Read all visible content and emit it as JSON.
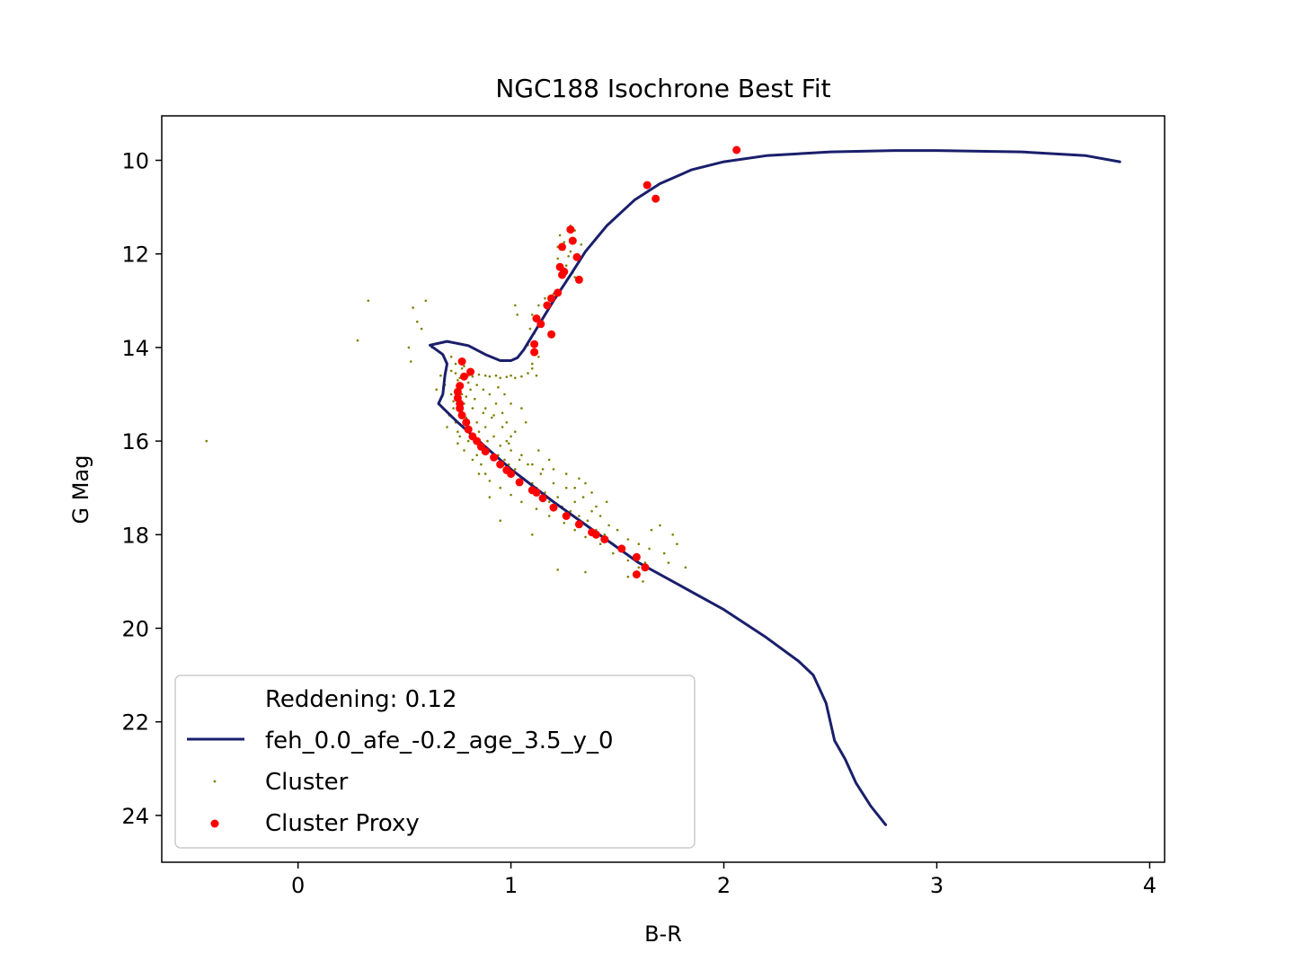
{
  "chart_data": {
    "type": "scatter",
    "title": "NGC188 Isochrone Best Fit",
    "xlabel": "B-R",
    "ylabel": "G Mag",
    "xlim": [
      -0.64,
      4.07
    ],
    "ylim": [
      25.0,
      9.05
    ],
    "y_inverted": true,
    "xticks": [
      0,
      1,
      2,
      3,
      4
    ],
    "xtick_labels": [
      "0",
      "1",
      "2",
      "3",
      "4"
    ],
    "yticks": [
      10,
      12,
      14,
      16,
      18,
      20,
      22,
      24
    ],
    "ytick_labels": [
      "10",
      "12",
      "14",
      "16",
      "18",
      "20",
      "22",
      "24"
    ],
    "grid": false,
    "legend_position": "lower-left",
    "legend": {
      "header": "Reddening: 0.12",
      "entries": [
        "feh_0.0_afe_-0.2_age_3.5_y_0",
        "Cluster",
        "Cluster Proxy"
      ]
    },
    "colors": {
      "isochrone": "#1a1f6b",
      "cluster": "#808000",
      "proxy": "#ff0000"
    },
    "series": [
      {
        "name": "feh_0.0_afe_-0.2_age_3.5_y_0",
        "kind": "line",
        "points": [
          [
            3.86,
            10.03
          ],
          [
            3.7,
            9.9
          ],
          [
            3.4,
            9.82
          ],
          [
            3.0,
            9.79
          ],
          [
            2.8,
            9.79
          ],
          [
            2.5,
            9.82
          ],
          [
            2.2,
            9.9
          ],
          [
            2.0,
            10.03
          ],
          [
            1.85,
            10.2
          ],
          [
            1.7,
            10.5
          ],
          [
            1.58,
            10.85
          ],
          [
            1.45,
            11.4
          ],
          [
            1.35,
            11.95
          ],
          [
            1.28,
            12.45
          ],
          [
            1.2,
            13.0
          ],
          [
            1.12,
            13.6
          ],
          [
            1.06,
            14.05
          ],
          [
            1.03,
            14.22
          ],
          [
            1.0,
            14.28
          ],
          [
            0.95,
            14.28
          ],
          [
            0.88,
            14.15
          ],
          [
            0.8,
            13.96
          ],
          [
            0.7,
            13.87
          ],
          [
            0.62,
            13.95
          ],
          [
            0.68,
            14.15
          ],
          [
            0.7,
            14.35
          ],
          [
            0.69,
            14.6
          ],
          [
            0.68,
            15.0
          ],
          [
            0.66,
            15.2
          ],
          [
            0.75,
            15.6
          ],
          [
            0.85,
            16.0
          ],
          [
            1.0,
            16.6
          ],
          [
            1.2,
            17.3
          ],
          [
            1.4,
            17.95
          ],
          [
            1.6,
            18.6
          ],
          [
            1.8,
            19.1
          ],
          [
            2.0,
            19.6
          ],
          [
            2.2,
            20.2
          ],
          [
            2.35,
            20.7
          ],
          [
            2.42,
            21.0
          ],
          [
            2.45,
            21.3
          ],
          [
            2.48,
            21.6
          ],
          [
            2.5,
            22.0
          ],
          [
            2.52,
            22.4
          ],
          [
            2.57,
            22.8
          ],
          [
            2.62,
            23.3
          ],
          [
            2.69,
            23.8
          ],
          [
            2.76,
            24.2
          ]
        ]
      },
      {
        "name": "Cluster",
        "kind": "scatter",
        "points": [
          [
            -0.43,
            16.0
          ],
          [
            0.28,
            13.85
          ],
          [
            0.33,
            13.0
          ],
          [
            0.53,
            14.3
          ],
          [
            0.54,
            13.15
          ],
          [
            0.56,
            13.45
          ],
          [
            0.58,
            13.6
          ],
          [
            0.6,
            13.0
          ],
          [
            0.52,
            14.0
          ],
          [
            0.63,
            14.0
          ],
          [
            0.65,
            14.9
          ],
          [
            0.67,
            14.6
          ],
          [
            0.69,
            14.8
          ],
          [
            0.72,
            14.5
          ],
          [
            0.74,
            14.55
          ],
          [
            0.75,
            14.7
          ],
          [
            0.76,
            14.65
          ],
          [
            0.78,
            14.6
          ],
          [
            0.8,
            14.6
          ],
          [
            0.82,
            14.62
          ],
          [
            0.85,
            14.58
          ],
          [
            0.88,
            14.6
          ],
          [
            0.9,
            14.62
          ],
          [
            0.93,
            14.6
          ],
          [
            0.95,
            14.65
          ],
          [
            0.98,
            14.63
          ],
          [
            1.0,
            14.6
          ],
          [
            1.02,
            14.65
          ],
          [
            1.05,
            14.62
          ],
          [
            1.08,
            14.55
          ],
          [
            1.1,
            14.45
          ],
          [
            1.12,
            14.6
          ],
          [
            1.13,
            14.2
          ],
          [
            1.1,
            14.35
          ],
          [
            1.09,
            13.6
          ],
          [
            1.08,
            13.95
          ],
          [
            1.1,
            13.3
          ],
          [
            1.11,
            13.7
          ],
          [
            1.13,
            13.1
          ],
          [
            1.18,
            13.75
          ],
          [
            1.16,
            12.95
          ],
          [
            1.2,
            12.85
          ],
          [
            1.22,
            12.1
          ],
          [
            1.23,
            11.6
          ],
          [
            1.22,
            11.85
          ],
          [
            1.25,
            11.9
          ],
          [
            1.27,
            12.05
          ],
          [
            1.26,
            12.25
          ],
          [
            1.29,
            12.4
          ],
          [
            1.3,
            12.5
          ],
          [
            1.28,
            11.95
          ],
          [
            1.3,
            11.5
          ],
          [
            1.33,
            11.8
          ],
          [
            1.28,
            11.4
          ],
          [
            1.25,
            11.75
          ],
          [
            1.03,
            13.3
          ],
          [
            1.02,
            13.1
          ],
          [
            0.72,
            15.0
          ],
          [
            0.73,
            15.3
          ],
          [
            0.74,
            15.6
          ],
          [
            0.75,
            15.8
          ],
          [
            0.77,
            15.0
          ],
          [
            0.78,
            15.2
          ],
          [
            0.79,
            15.5
          ],
          [
            0.8,
            15.7
          ],
          [
            0.81,
            15.9
          ],
          [
            0.82,
            15.3
          ],
          [
            0.83,
            15.1
          ],
          [
            0.84,
            15.6
          ],
          [
            0.85,
            15.8
          ],
          [
            0.86,
            16.1
          ],
          [
            0.87,
            15.4
          ],
          [
            0.88,
            15.7
          ],
          [
            0.89,
            16.0
          ],
          [
            0.9,
            16.2
          ],
          [
            0.91,
            15.5
          ],
          [
            0.92,
            15.9
          ],
          [
            0.94,
            16.3
          ],
          [
            0.95,
            16.1
          ],
          [
            0.96,
            15.7
          ],
          [
            0.97,
            16.4
          ],
          [
            0.98,
            16.0
          ],
          [
            0.99,
            16.5
          ],
          [
            1.0,
            16.2
          ],
          [
            1.02,
            16.6
          ],
          [
            1.04,
            16.4
          ],
          [
            1.06,
            16.8
          ],
          [
            1.08,
            16.5
          ],
          [
            1.1,
            16.9
          ],
          [
            1.12,
            17.0
          ],
          [
            1.14,
            16.7
          ],
          [
            1.16,
            17.1
          ],
          [
            1.18,
            17.3
          ],
          [
            1.2,
            16.9
          ],
          [
            1.22,
            17.2
          ],
          [
            1.24,
            17.4
          ],
          [
            1.26,
            17.0
          ],
          [
            1.28,
            17.5
          ],
          [
            1.3,
            17.3
          ],
          [
            1.32,
            17.6
          ],
          [
            1.34,
            17.2
          ],
          [
            1.36,
            17.7
          ],
          [
            1.38,
            17.5
          ],
          [
            1.4,
            17.9
          ],
          [
            1.42,
            17.6
          ],
          [
            1.44,
            18.0
          ],
          [
            1.46,
            17.8
          ],
          [
            1.48,
            18.2
          ],
          [
            1.5,
            17.9
          ],
          [
            1.52,
            18.3
          ],
          [
            1.55,
            18.1
          ],
          [
            1.58,
            18.5
          ],
          [
            1.6,
            18.2
          ],
          [
            1.63,
            18.6
          ],
          [
            1.65,
            18.3
          ],
          [
            1.68,
            18.8
          ],
          [
            1.7,
            17.8
          ],
          [
            1.72,
            18.4
          ],
          [
            1.74,
            18.6
          ],
          [
            1.76,
            18.0
          ],
          [
            1.78,
            18.2
          ],
          [
            1.82,
            18.7
          ],
          [
            1.66,
            17.9
          ],
          [
            1.62,
            19.0
          ],
          [
            1.55,
            18.9
          ],
          [
            1.35,
            18.8
          ],
          [
            1.22,
            18.75
          ],
          [
            1.1,
            18.0
          ],
          [
            0.95,
            17.7
          ],
          [
            0.9,
            17.2
          ],
          [
            0.88,
            16.7
          ],
          [
            0.86,
            16.5
          ],
          [
            0.84,
            16.3
          ],
          [
            0.8,
            16.0
          ],
          [
            0.76,
            15.9
          ],
          [
            1.38,
            17.1
          ],
          [
            1.35,
            16.9
          ],
          [
            1.3,
            17.0
          ],
          [
            1.4,
            17.4
          ],
          [
            1.45,
            17.3
          ],
          [
            1.32,
            16.8
          ],
          [
            1.26,
            16.7
          ],
          [
            1.2,
            16.6
          ],
          [
            1.15,
            16.6
          ],
          [
            1.1,
            16.5
          ],
          [
            1.05,
            16.3
          ],
          [
            1.0,
            15.9
          ],
          [
            0.98,
            15.6
          ],
          [
            0.96,
            15.4
          ],
          [
            0.93,
            15.2
          ],
          [
            0.9,
            15.0
          ],
          [
            0.87,
            14.9
          ],
          [
            0.84,
            14.8
          ],
          [
            0.81,
            14.9
          ],
          [
            0.79,
            15.05
          ],
          [
            0.76,
            15.4
          ],
          [
            0.74,
            14.9
          ],
          [
            0.73,
            15.15
          ],
          [
            0.71,
            15.45
          ],
          [
            0.7,
            15.7
          ],
          [
            0.75,
            16.05
          ],
          [
            0.78,
            16.2
          ],
          [
            0.82,
            16.4
          ],
          [
            0.85,
            16.7
          ],
          [
            0.9,
            16.85
          ],
          [
            0.95,
            17.0
          ],
          [
            1.0,
            17.15
          ],
          [
            1.05,
            17.3
          ],
          [
            1.12,
            17.45
          ],
          [
            1.18,
            17.6
          ],
          [
            1.25,
            17.75
          ],
          [
            1.3,
            17.9
          ],
          [
            1.35,
            18.05
          ],
          [
            1.42,
            18.2
          ],
          [
            1.48,
            18.4
          ],
          [
            1.55,
            18.55
          ],
          [
            1.6,
            18.7
          ],
          [
            1.05,
            15.3
          ],
          [
            1.0,
            15.2
          ],
          [
            0.97,
            15.0
          ],
          [
            0.94,
            14.85
          ],
          [
            0.92,
            15.45
          ],
          [
            0.88,
            15.3
          ],
          [
            1.07,
            15.6
          ],
          [
            1.02,
            15.8
          ],
          [
            0.99,
            16.05
          ],
          [
            1.13,
            16.2
          ],
          [
            1.18,
            16.4
          ],
          [
            0.8,
            14.75
          ],
          [
            0.77,
            14.45
          ],
          [
            0.76,
            14.3
          ],
          [
            0.78,
            14.4
          ],
          [
            0.72,
            14.2
          ],
          [
            0.74,
            14.35
          ]
        ]
      },
      {
        "name": "Cluster Proxy",
        "kind": "scatter",
        "points": [
          [
            2.06,
            9.78
          ],
          [
            1.64,
            10.53
          ],
          [
            1.68,
            10.82
          ],
          [
            1.28,
            11.48
          ],
          [
            1.29,
            11.72
          ],
          [
            1.24,
            11.85
          ],
          [
            1.31,
            12.07
          ],
          [
            1.23,
            12.28
          ],
          [
            1.25,
            12.38
          ],
          [
            1.24,
            12.45
          ],
          [
            1.32,
            12.55
          ],
          [
            1.22,
            12.83
          ],
          [
            1.19,
            12.95
          ],
          [
            1.17,
            13.1
          ],
          [
            1.12,
            13.38
          ],
          [
            1.14,
            13.5
          ],
          [
            1.19,
            13.72
          ],
          [
            1.11,
            13.93
          ],
          [
            1.11,
            14.1
          ],
          [
            0.77,
            14.3
          ],
          [
            0.81,
            14.52
          ],
          [
            0.78,
            14.62
          ],
          [
            0.76,
            14.82
          ],
          [
            0.75,
            14.95
          ],
          [
            0.75,
            15.08
          ],
          [
            0.76,
            15.2
          ],
          [
            0.76,
            15.3
          ],
          [
            0.77,
            15.45
          ],
          [
            0.79,
            15.6
          ],
          [
            0.8,
            15.75
          ],
          [
            0.82,
            15.9
          ],
          [
            0.84,
            16.0
          ],
          [
            0.86,
            16.12
          ],
          [
            0.88,
            16.22
          ],
          [
            0.92,
            16.35
          ],
          [
            0.95,
            16.5
          ],
          [
            0.98,
            16.62
          ],
          [
            1.0,
            16.7
          ],
          [
            1.04,
            16.88
          ],
          [
            1.1,
            17.05
          ],
          [
            1.12,
            17.1
          ],
          [
            1.15,
            17.22
          ],
          [
            1.2,
            17.42
          ],
          [
            1.26,
            17.6
          ],
          [
            1.32,
            17.78
          ],
          [
            1.38,
            17.95
          ],
          [
            1.4,
            18.0
          ],
          [
            1.44,
            18.1
          ],
          [
            1.52,
            18.3
          ],
          [
            1.59,
            18.48
          ],
          [
            1.63,
            18.7
          ],
          [
            1.59,
            18.85
          ]
        ]
      }
    ]
  }
}
